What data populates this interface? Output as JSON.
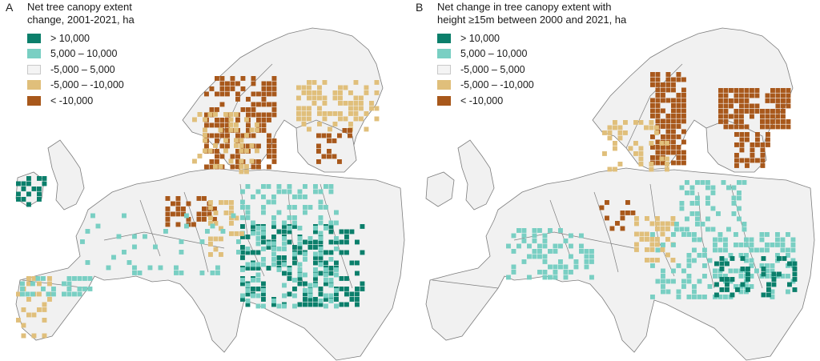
{
  "colors": {
    "cls1": "#0b7f6b",
    "cls2": "#79cfc3",
    "cls3": "#f4f4f4",
    "cls4": "#e0bf7b",
    "cls5": "#a8581b",
    "land": "#f1f1f1",
    "border": "#7d7d7d"
  },
  "panels": [
    {
      "letter": "A",
      "title_line1": "Net tree canopy extent",
      "title_line2": "change, 2001-2021, ha",
      "legend": [
        {
          "label": "> 10,000",
          "color": "#0b7f6b"
        },
        {
          "label": "5,000 – 10,000",
          "color": "#79cfc3"
        },
        {
          "label": "-5,000 – 5,000",
          "color": "#f4f4f4"
        },
        {
          "label": "-5,000 – -10,000",
          "color": "#e0bf7b"
        },
        {
          "label": "< -10,000",
          "color": "#a8581b"
        }
      ]
    },
    {
      "letter": "B",
      "title_line1": "Net change in tree canopy extent with",
      "title_line2": "height ≥15m between 2000 and 2021, ha",
      "legend": [
        {
          "label": "> 10,000",
          "color": "#0b7f6b"
        },
        {
          "label": "5,000 – 10,000",
          "color": "#79cfc3"
        },
        {
          "label": "-5,000 – 5,000",
          "color": "#f4f4f4"
        },
        {
          "label": "-5,000 – -10,000",
          "color": "#e0bf7b"
        },
        {
          "label": "< -10,000",
          "color": "#a8581b"
        }
      ]
    }
  ]
}
